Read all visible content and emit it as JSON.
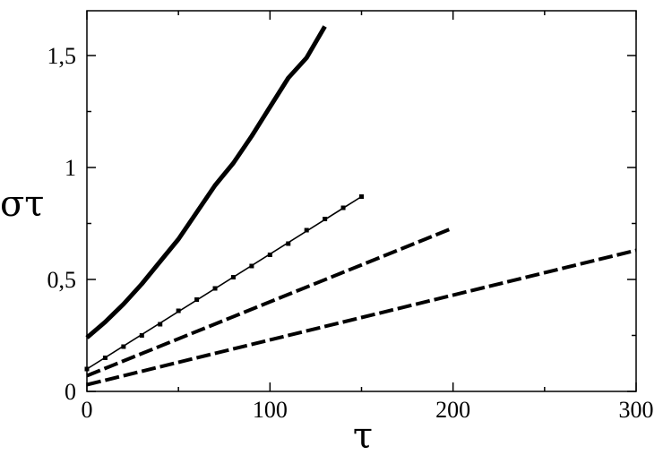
{
  "chart_data": {
    "type": "line",
    "title": "",
    "xlabel": "τ",
    "ylabel": "στ",
    "xlim": [
      0,
      300
    ],
    "ylim": [
      0,
      1.7
    ],
    "grid": false,
    "x_ticks": [
      {
        "value": 0,
        "label": "0"
      },
      {
        "value": 100,
        "label": "100"
      },
      {
        "value": 200,
        "label": "200"
      },
      {
        "value": 300,
        "label": "300"
      }
    ],
    "x_minor_ticks": [
      50,
      150,
      250
    ],
    "y_ticks": [
      {
        "value": 0,
        "label": "0"
      },
      {
        "value": 0.5,
        "label": "0,5"
      },
      {
        "value": 1,
        "label": "1"
      },
      {
        "value": 1.5,
        "label": "1,5"
      }
    ],
    "y_minor_ticks": [
      0.25,
      0.75,
      1.25
    ],
    "series": [
      {
        "style": "thick-solid",
        "x": [
          0,
          10,
          20,
          30,
          40,
          50,
          60,
          70,
          80,
          90,
          100,
          110,
          120,
          130
        ],
        "y": [
          0.24,
          0.31,
          0.39,
          0.48,
          0.58,
          0.68,
          0.8,
          0.92,
          1.02,
          1.14,
          1.27,
          1.4,
          1.49,
          1.63
        ]
      },
      {
        "style": "thin-solid",
        "x": [
          0,
          150
        ],
        "y": [
          0.1,
          0.87
        ]
      },
      {
        "style": "square-markers",
        "x": [
          0,
          10,
          20,
          30,
          40,
          50,
          60,
          70,
          80,
          90,
          100,
          110,
          120,
          130,
          140,
          150
        ],
        "y": [
          0.1,
          0.15,
          0.2,
          0.25,
          0.3,
          0.36,
          0.41,
          0.46,
          0.51,
          0.56,
          0.61,
          0.66,
          0.72,
          0.77,
          0.82,
          0.87
        ]
      },
      {
        "style": "thick-dashed",
        "x": [
          0,
          200
        ],
        "y": [
          0.07,
          0.73
        ]
      },
      {
        "style": "thick-dashed",
        "x": [
          0,
          300
        ],
        "y": [
          0.03,
          0.63
        ]
      }
    ]
  }
}
